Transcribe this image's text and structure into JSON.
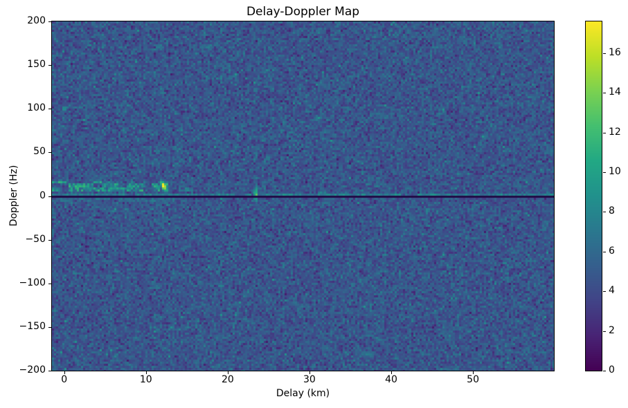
{
  "chart_data": {
    "type": "heatmap",
    "title": "Delay-Doppler Map",
    "xlabel": "Delay (km)",
    "ylabel": "Doppler (Hz)",
    "x_range": [
      -1.5,
      59.9
    ],
    "y_range": [
      -200,
      200
    ],
    "x_ticks": [
      0,
      10,
      20,
      30,
      40,
      50
    ],
    "x_tick_labels": [
      "0",
      "10",
      "20",
      "30",
      "40",
      "50"
    ],
    "y_ticks": [
      200,
      150,
      100,
      50,
      0,
      -50,
      -100,
      -150,
      -200
    ],
    "y_tick_labels": [
      "200",
      "150",
      "100",
      "50",
      "0",
      "−50",
      "−100",
      "−150",
      "−200"
    ],
    "grid": false,
    "legend": "none",
    "colormap": "viridis",
    "colormap_stops": [
      "#440154",
      "#482475",
      "#414487",
      "#355f8d",
      "#2a788e",
      "#21918c",
      "#22a884",
      "#44bf70",
      "#7ad151",
      "#bddf26",
      "#fde725"
    ],
    "colorbar": {
      "position": "right",
      "vmin": 0,
      "vmax": 17.6,
      "ticks": [
        0,
        2,
        4,
        6,
        8,
        10,
        12,
        14,
        16
      ],
      "tick_labels": [
        "0",
        "2",
        "4",
        "6",
        "8",
        "10",
        "12",
        "14",
        "16"
      ]
    },
    "background_noise": {
      "mean": 4.7,
      "std": 1.15,
      "min": 1.2,
      "max": 9.2
    },
    "features": [
      {
        "name": "zero-doppler-dark-line",
        "type": "hline",
        "doppler": -0.2,
        "halfwidth_hz": 1.0,
        "value": 0.2
      },
      {
        "name": "specular-line-above-zero",
        "type": "band",
        "delay": [
          -1.5,
          59.9
        ],
        "doppler": [
          0.8,
          3.8
        ],
        "level": 7.4,
        "variation": 2.0,
        "density": 0.85
      },
      {
        "name": "sub-zero-clutter",
        "type": "band",
        "delay": [
          -1.5,
          13.5
        ],
        "doppler": [
          -6,
          -0.5
        ],
        "level": 6.0,
        "variation": 1.6,
        "density": 0.7
      },
      {
        "name": "near-range-clutter-band",
        "type": "band",
        "delay": [
          -1.5,
          13.2
        ],
        "doppler": [
          4,
          18
        ],
        "level": 8.2,
        "variation": 3.5,
        "density": 0.62
      },
      {
        "name": "wake-speckles",
        "type": "band",
        "delay": [
          13.2,
          33
        ],
        "doppler": [
          3,
          22
        ],
        "level": 6.8,
        "variation": 1.5,
        "density": 0.08
      },
      {
        "name": "bright-target-streak",
        "type": "blob",
        "delay": 12.2,
        "doppler": 11,
        "sigma_delay": 0.3,
        "sigma_doppler": 5.5,
        "tilt": -0.04,
        "peak": 17.5
      },
      {
        "name": "secondary-vertical-streak",
        "type": "blob",
        "delay": 23.45,
        "doppler": 2,
        "sigma_delay": 0.24,
        "sigma_doppler": 8,
        "tilt": 0,
        "peak": 13.2
      },
      {
        "name": "isolated-echo-dot",
        "type": "blob",
        "delay": 0,
        "doppler": 100,
        "sigma_delay": 0.3,
        "sigma_doppler": 1.8,
        "tilt": 0,
        "peak": 10.5
      },
      {
        "name": "faint-smudge",
        "type": "blob",
        "delay": 37,
        "doppler": -181,
        "sigma_delay": 1.0,
        "sigma_doppler": 3.5,
        "tilt": 0,
        "peak": 7.2
      }
    ]
  }
}
